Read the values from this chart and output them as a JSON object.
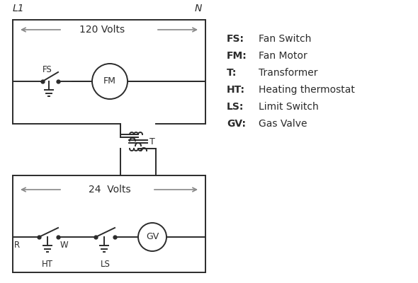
{
  "bg_color": "#ffffff",
  "line_color": "#2b2b2b",
  "gray_color": "#888888",
  "legend": [
    [
      "FS:",
      "Fan Switch"
    ],
    [
      "FM:",
      "Fan Motor"
    ],
    [
      "T:",
      "Transformer"
    ],
    [
      "HT:",
      "Heating thermostat"
    ],
    [
      "LS:",
      "Limit Switch"
    ],
    [
      "GV:",
      "Gas Valve"
    ]
  ],
  "font_family": "DejaVu Sans"
}
